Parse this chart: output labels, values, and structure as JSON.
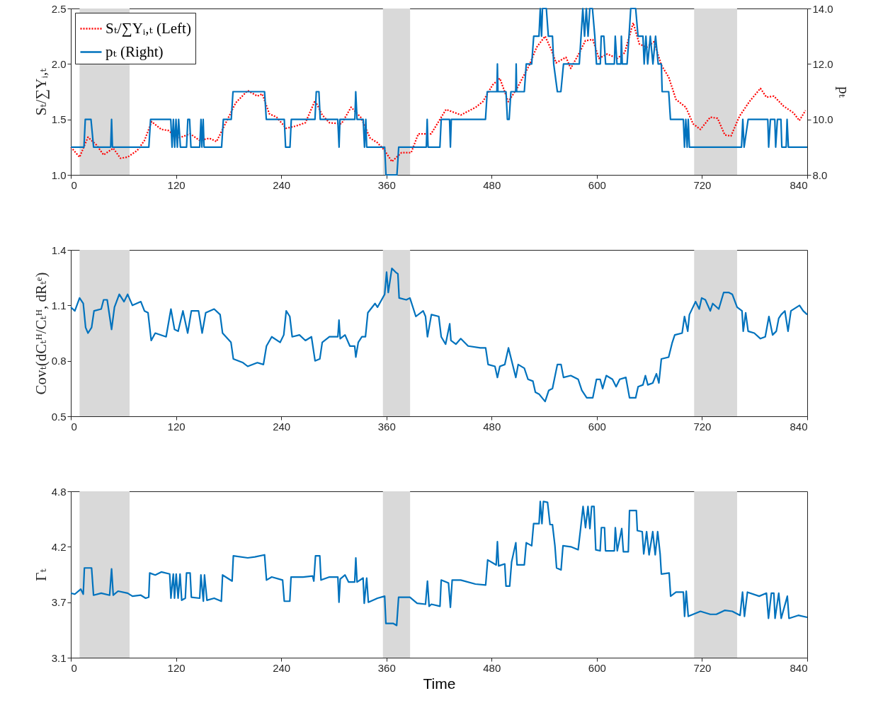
{
  "chart_data": [
    {
      "type": "line",
      "ylabel": "Sₜ/∑Yᵢ,ₜ",
      "y2label": "pₜ",
      "xlim": [
        0,
        840
      ],
      "xticks": [
        0,
        120,
        240,
        360,
        480,
        600,
        720,
        840
      ],
      "ylim": [
        1,
        2.5
      ],
      "yticks": [
        {
          "value": 1,
          "label": "1.0"
        },
        1.5,
        {
          "value": 2,
          "label": "2.0"
        },
        2.5
      ],
      "y2lim": [
        8,
        14
      ],
      "y2ticks": [
        {
          "value": 8,
          "label": "8.0"
        },
        {
          "value": 10,
          "label": "10.0"
        },
        {
          "value": 12,
          "label": "12.0"
        },
        {
          "value": 14,
          "label": "14.0"
        }
      ],
      "legend": "top left",
      "bands": [
        {
          "axis": "x",
          "from": 10,
          "to": 67,
          "color": "#d9d9d9"
        },
        {
          "axis": "x",
          "from": 356,
          "to": 387,
          "color": "#d9d9d9"
        },
        {
          "axis": "x",
          "from": 711,
          "to": 760,
          "color": "#d9d9d9"
        }
      ],
      "series": [
        {
          "name": "Sₜ/∑Yᵢ,ₜ (Left)",
          "color": "#ff0000",
          "line_style": "dotted",
          "x": [
            0,
            10,
            19.6,
            29.2,
            37.4,
            48.4,
            56.6,
            64.8,
            75.8,
            84,
            92.2,
            103.2,
            111.4,
            122.4,
            136.1,
            147,
            158,
            166.2,
            180,
            188.1,
            201.8,
            212.8,
            218.3,
            226.5,
            234.7,
            245.7,
            256.6,
            267.6,
            278.6,
            286.8,
            295,
            308.7,
            319.7,
            330.6,
            341.6,
            349.8,
            358,
            366.2,
            377.2,
            388.2,
            396.4,
            411,
            428,
            445,
            462,
            470,
            481,
            489.4,
            499,
            509,
            523,
            531.3,
            541,
            548,
            553.6,
            564.8,
            570.3,
            578.7,
            587,
            595.4,
            602.4,
            612,
            623.3,
            631.7,
            641.5,
            648.5,
            656.8,
            665.2,
            673.6,
            682,
            690.3,
            701.5,
            709.8,
            718.2,
            729.4,
            737.7,
            746,
            753,
            762.8,
            774,
            786.6,
            793.5,
            801.9,
            813,
            824.2,
            831,
            838
          ],
          "values": [
            1.25,
            1.16,
            1.34,
            1.27,
            1.18,
            1.24,
            1.15,
            1.16,
            1.22,
            1.31,
            1.48,
            1.41,
            1.4,
            1.33,
            1.37,
            1.31,
            1.33,
            1.3,
            1.52,
            1.65,
            1.76,
            1.71,
            1.73,
            1.55,
            1.52,
            1.42,
            1.44,
            1.47,
            1.67,
            1.54,
            1.47,
            1.46,
            1.61,
            1.52,
            1.33,
            1.29,
            1.22,
            1.12,
            1.2,
            1.2,
            1.37,
            1.37,
            1.59,
            1.54,
            1.61,
            1.66,
            1.81,
            1.87,
            1.66,
            1.78,
            1.99,
            2.15,
            2.25,
            2.13,
            2.01,
            2.06,
            1.96,
            2.08,
            2.21,
            2.22,
            2.05,
            2.09,
            2.05,
            2.1,
            2.37,
            2.18,
            2.15,
            2.2,
            1.99,
            1.88,
            1.68,
            1.61,
            1.46,
            1.41,
            1.52,
            1.51,
            1.36,
            1.35,
            1.53,
            1.66,
            1.78,
            1.7,
            1.71,
            1.62,
            1.56,
            1.49,
            1.58
          ]
        },
        {
          "name": "pₜ (Right)",
          "color": "#0072bd",
          "line_style": "solid",
          "axis": "y2",
          "x": [
            0,
            15,
            16.5,
            23,
            26,
            45.5,
            46.5,
            47.5,
            89,
            91,
            114,
            115.5,
            117,
            118.5,
            120,
            121.5,
            123,
            125,
            132,
            133.5,
            135.5,
            137,
            147,
            148.5,
            149.5,
            151,
            152,
            172,
            174,
            183,
            185,
            221,
            223,
            243.5,
            245,
            250,
            251.5,
            278.5,
            280,
            283,
            284.5,
            304.5,
            306,
            307,
            324,
            325,
            326.5,
            333.5,
            335,
            336.5,
            337.5,
            358,
            359.5,
            372,
            374,
            405.5,
            406.5,
            407.5,
            421,
            422.5,
            432,
            433,
            434,
            473,
            475,
            486,
            486.6,
            487.2,
            496.4,
            498,
            500,
            502,
            507.5,
            508,
            508.6,
            517.3,
            519.5,
            525.7,
            528,
            534,
            535.5,
            537,
            538,
            542.4,
            544.7,
            549.4,
            550.8,
            555,
            559,
            562,
            580,
            582,
            584,
            586,
            588,
            590,
            592,
            595,
            597.7,
            599.6,
            604,
            605,
            608,
            610,
            620,
            621,
            623,
            627.5,
            628,
            629,
            634.5,
            636.7,
            638.7,
            644.3,
            647,
            652.6,
            654,
            656,
            658,
            661,
            664,
            667,
            670,
            673.6,
            674.5,
            682,
            684,
            698.7,
            700,
            701.5,
            703,
            704.3,
            705.6,
            765,
            766.5,
            768,
            772.6,
            795,
            796,
            798,
            803,
            804,
            806,
            810,
            811,
            816,
            817,
            818.5,
            840
          ],
          "values": [
            9,
            9,
            10,
            10,
            9,
            9,
            10,
            9,
            9,
            10,
            10,
            9,
            10,
            9,
            10,
            9,
            10,
            9,
            9,
            10,
            10,
            9,
            9,
            10,
            9,
            10,
            9,
            9,
            10,
            10,
            11,
            11,
            10,
            10,
            9,
            9,
            10,
            10,
            11,
            11,
            10,
            10,
            9,
            10,
            10,
            11,
            10,
            10,
            9,
            10,
            9,
            9,
            8,
            8,
            9,
            9,
            10,
            9,
            9,
            10,
            10,
            9,
            10,
            10,
            11,
            11,
            12,
            11,
            11,
            10,
            10,
            11,
            11,
            12,
            11,
            11,
            12,
            12,
            13,
            13,
            14,
            13,
            14,
            14,
            13,
            13,
            12,
            11,
            11,
            12,
            12,
            13,
            14,
            13,
            14,
            13,
            14,
            14,
            13,
            12,
            12,
            13,
            13,
            12,
            12,
            13,
            12,
            12,
            13,
            12,
            12,
            13,
            14,
            14,
            13,
            13,
            12,
            13,
            12,
            13,
            12,
            13,
            12,
            12,
            11,
            11,
            10,
            10,
            9,
            10,
            9,
            10,
            9,
            9,
            10,
            9,
            10,
            10,
            9,
            10,
            10,
            9,
            10,
            10,
            9,
            9,
            10,
            9,
            9
          ]
        }
      ]
    },
    {
      "type": "line",
      "ylabel": "Covₜ(dCₜᴴ/Cₜᴴ, dRₜᵉ)",
      "xlim": [
        0,
        840
      ],
      "xticks": [
        0,
        120,
        240,
        360,
        480,
        600,
        720,
        840
      ],
      "ylim": [
        0.5,
        1.4
      ],
      "yticks": [
        0.5,
        0.8,
        1.1,
        1.4
      ],
      "bands": [
        {
          "axis": "x",
          "from": 10,
          "to": 67,
          "color": "#d9d9d9"
        },
        {
          "axis": "x",
          "from": 356,
          "to": 387,
          "color": "#d9d9d9"
        },
        {
          "axis": "x",
          "from": 711,
          "to": 760,
          "color": "#d9d9d9"
        }
      ],
      "series": [
        {
          "color": "#0072bd",
          "x": [
            0,
            4.6,
            10,
            14.2,
            16.9,
            19.6,
            23.7,
            26.5,
            34.7,
            37.4,
            41.5,
            46.5,
            49.8,
            55.3,
            60.7,
            64.8,
            70.3,
            79.9,
            84,
            88.1,
            91.7,
            96.3,
            108.7,
            114.2,
            118.3,
            122.4,
            127.9,
            133.3,
            137.5,
            145.7,
            149.8,
            153.9,
            163.5,
            170.3,
            173.1,
            182.7,
            185.4,
            196.4,
            201.8,
            212.8,
            219.7,
            223.2,
            229.2,
            238.8,
            242.9,
            245.7,
            249.8,
            252.5,
            260.8,
            267.6,
            274.5,
            278.6,
            284,
            286.8,
            295,
            304.6,
            305.9,
            307.3,
            312.8,
            318.3,
            323.8,
            325.1,
            327.9,
            332,
            336.1,
            338.8,
            347,
            349.8,
            358,
            360.2,
            362.1,
            366.2,
            370.4,
            373.1,
            374.5,
            382.7,
            386.8,
            393.6,
            401.9,
            404.6,
            406.8,
            411.3,
            419.7,
            422.5,
            427.5,
            432.2,
            433.6,
            439.2,
            444.8,
            453.2,
            467.1,
            473.2,
            476,
            483.8,
            486.6,
            489.4,
            495,
            499.2,
            503.4,
            507.6,
            510.3,
            517.3,
            521.5,
            527.1,
            529.9,
            534.1,
            541,
            545.2,
            549.4,
            555,
            559.2,
            562,
            570.3,
            578.7,
            582.9,
            588.5,
            595.4,
            599.6,
            603.8,
            606.6,
            610.8,
            617.8,
            622,
            626.1,
            633.1,
            637.3,
            644.3,
            647.1,
            652.6,
            655.4,
            658.2,
            663.8,
            668,
            670.8,
            673.6,
            681.9,
            686.1,
            688.9,
            697.3,
            700,
            703.7,
            705.6,
            712.6,
            716.8,
            719.6,
            723.8,
            729.4,
            732.2,
            739.1,
            744.7,
            750.3,
            754.5,
            760,
            765.6,
            767,
            769.8,
            772.6,
            779.6,
            786.6,
            792.1,
            796.3,
            800.5,
            804.7,
            807.5,
            810.3,
            814.5,
            818.1,
            821.4,
            831.2,
            835.4,
            840
          ],
          "values": [
            1.09,
            1.07,
            1.14,
            1.11,
            0.98,
            0.95,
            0.98,
            1.07,
            1.08,
            1.13,
            1.13,
            0.97,
            1.09,
            1.16,
            1.12,
            1.16,
            1.1,
            1.12,
            1.07,
            1.06,
            0.91,
            0.95,
            0.93,
            1.08,
            0.97,
            0.96,
            1.07,
            0.95,
            1.07,
            1.07,
            0.95,
            1.06,
            1.08,
            1.05,
            0.95,
            0.9,
            0.81,
            0.79,
            0.77,
            0.79,
            0.78,
            0.88,
            0.93,
            0.9,
            0.94,
            1.07,
            1.04,
            0.93,
            0.94,
            0.91,
            0.93,
            0.8,
            0.81,
            0.9,
            0.93,
            0.93,
            1.02,
            0.92,
            0.94,
            0.88,
            0.88,
            0.82,
            0.9,
            0.93,
            0.93,
            1.06,
            1.11,
            1.09,
            1.16,
            1.28,
            1.17,
            1.3,
            1.28,
            1.27,
            1.14,
            1.13,
            1.14,
            1.04,
            1.07,
            1.04,
            0.93,
            1.05,
            1.04,
            0.93,
            0.89,
            1.0,
            0.91,
            0.89,
            0.92,
            0.88,
            0.87,
            0.87,
            0.78,
            0.77,
            0.71,
            0.77,
            0.78,
            0.87,
            0.79,
            0.71,
            0.78,
            0.76,
            0.7,
            0.69,
            0.63,
            0.62,
            0.58,
            0.64,
            0.65,
            0.78,
            0.78,
            0.71,
            0.72,
            0.7,
            0.64,
            0.6,
            0.6,
            0.7,
            0.7,
            0.65,
            0.72,
            0.7,
            0.66,
            0.7,
            0.71,
            0.6,
            0.6,
            0.66,
            0.67,
            0.72,
            0.67,
            0.68,
            0.73,
            0.68,
            0.81,
            0.82,
            0.9,
            0.94,
            0.95,
            1.04,
            0.96,
            1.05,
            1.12,
            1.08,
            1.14,
            1.13,
            1.07,
            1.11,
            1.08,
            1.17,
            1.17,
            1.16,
            1.09,
            1.07,
            0.96,
            1.06,
            0.96,
            0.95,
            0.92,
            0.93,
            1.04,
            0.94,
            0.96,
            1.03,
            1.05,
            1.07,
            0.96,
            1.07,
            1.1,
            1.07,
            1.05
          ]
        }
      ]
    },
    {
      "type": "line",
      "ylabel": "Γₜ",
      "xlabel": "Time",
      "xlim": [
        0,
        840
      ],
      "xticks": [
        0,
        120,
        240,
        360,
        480,
        600,
        720,
        840
      ],
      "ylim": [
        3.1,
        4.75
      ],
      "yticks": [
        3.1,
        {
          "value": 3.65,
          "label": "3.7"
        },
        4.2,
        {
          "value": 4.75,
          "label": "4.8"
        }
      ],
      "bands": [
        {
          "axis": "x",
          "from": 10,
          "to": 67,
          "color": "#d9d9d9"
        },
        {
          "axis": "x",
          "from": 356,
          "to": 387,
          "color": "#d9d9d9"
        },
        {
          "axis": "x",
          "from": 711,
          "to": 760,
          "color": "#d9d9d9"
        }
      ],
      "series": [
        {
          "color": "#0072bd",
          "x": [
            0,
            4.6,
            11.4,
            14.2,
            15.5,
            21,
            23.7,
            25.9,
            34.7,
            44.3,
            46.5,
            48.4,
            53.9,
            64.8,
            70.3,
            79.9,
            85.4,
            88.9,
            90,
            96.3,
            103.2,
            112.8,
            114.2,
            116.9,
            118.3,
            120.2,
            122.4,
            124.6,
            126.5,
            130.6,
            132,
            136.1,
            137.5,
            147,
            148.4,
            151.2,
            152.5,
            155.3,
            163.5,
            171.7,
            173.1,
            184,
            185.4,
            201.8,
            210,
            221,
            223.2,
            229.2,
            241.6,
            243.5,
            249.8,
            251.2,
            264.9,
            275.8,
            277.2,
            279.1,
            284,
            285.4,
            295,
            304.6,
            305.9,
            307.3,
            312.8,
            316.9,
            323.8,
            325.1,
            326.5,
            333.4,
            334.7,
            337.5,
            339.4,
            349.8,
            358,
            359.4,
            367.6,
            371.7,
            373.9,
            386.8,
            395,
            404.6,
            406.8,
            408.7,
            411.3,
            421.1,
            422.5,
            430.8,
            433,
            435,
            444.8,
            461.5,
            473.2,
            475.5,
            485.2,
            486.6,
            488,
            495,
            496.4,
            500.6,
            502.8,
            507.6,
            509,
            517.3,
            519.5,
            525.7,
            527.9,
            534.1,
            535.5,
            537.4,
            539.1,
            543.8,
            546.6,
            549.4,
            552.2,
            554.1,
            559.2,
            561.4,
            570.3,
            578.7,
            581.5,
            584.3,
            587.1,
            589.9,
            592.1,
            594.1,
            596.8,
            598.8,
            603.8,
            605.2,
            608.8,
            609.9,
            620,
            621.1,
            623.3,
            628.4,
            630.3,
            635.9,
            637.3,
            645.1,
            646.2,
            651.8,
            653.5,
            656.8,
            659.6,
            663.8,
            666.6,
            669.4,
            672.2,
            673.6,
            682.5,
            684.2,
            690.3,
            698.7,
            700.1,
            702,
            704.3,
            709.8,
            718.2,
            729.4,
            736.3,
            746.1,
            754.5,
            763.4,
            766.2,
            768.4,
            771.8,
            785.2,
            793.5,
            795.8,
            799.1,
            801.9,
            803.3,
            807.5,
            810.3,
            817.3,
            819.2,
            829.8,
            840
          ],
          "values": [
            3.74,
            3.73,
            3.78,
            3.73,
            3.99,
            3.99,
            3.99,
            3.72,
            3.74,
            3.72,
            3.98,
            3.72,
            3.76,
            3.74,
            3.71,
            3.72,
            3.69,
            3.7,
            3.94,
            3.92,
            3.95,
            3.93,
            3.69,
            3.93,
            3.69,
            3.93,
            3.69,
            3.93,
            3.67,
            3.69,
            3.94,
            3.94,
            3.7,
            3.69,
            3.92,
            3.66,
            3.92,
            3.67,
            3.69,
            3.66,
            3.92,
            3.86,
            4.11,
            4.09,
            4.1,
            4.12,
            3.87,
            3.9,
            3.87,
            3.66,
            3.66,
            3.9,
            3.9,
            3.91,
            3.86,
            4.11,
            4.11,
            3.87,
            3.9,
            3.9,
            3.65,
            3.88,
            3.92,
            3.85,
            3.85,
            4.09,
            3.85,
            3.89,
            3.64,
            3.89,
            3.65,
            3.69,
            3.71,
            3.44,
            3.44,
            3.42,
            3.7,
            3.7,
            3.64,
            3.63,
            3.86,
            3.61,
            3.63,
            3.61,
            3.87,
            3.84,
            3.6,
            3.87,
            3.87,
            3.83,
            3.82,
            4.07,
            4.02,
            4.25,
            4.01,
            4.03,
            3.81,
            3.81,
            4.05,
            4.24,
            4.02,
            4.02,
            4.24,
            4.21,
            4.43,
            4.43,
            4.65,
            4.43,
            4.65,
            4.64,
            4.42,
            4.42,
            4.21,
            3.99,
            3.97,
            4.21,
            4.2,
            4.17,
            4.38,
            4.6,
            4.39,
            4.6,
            4.38,
            4.6,
            4.6,
            4.17,
            4.16,
            4.39,
            4.39,
            4.16,
            4.16,
            4.39,
            4.16,
            4.38,
            4.15,
            4.15,
            4.56,
            4.56,
            4.36,
            4.35,
            4.13,
            4.35,
            4.12,
            4.35,
            4.12,
            4.35,
            4.13,
            3.93,
            3.94,
            3.71,
            3.75,
            3.75,
            3.51,
            3.76,
            3.51,
            3.53,
            3.56,
            3.53,
            3.53,
            3.57,
            3.56,
            3.52,
            3.75,
            3.51,
            3.75,
            3.71,
            3.74,
            3.49,
            3.74,
            3.74,
            3.49,
            3.74,
            3.49,
            3.71,
            3.49,
            3.52,
            3.5
          ]
        }
      ]
    }
  ]
}
